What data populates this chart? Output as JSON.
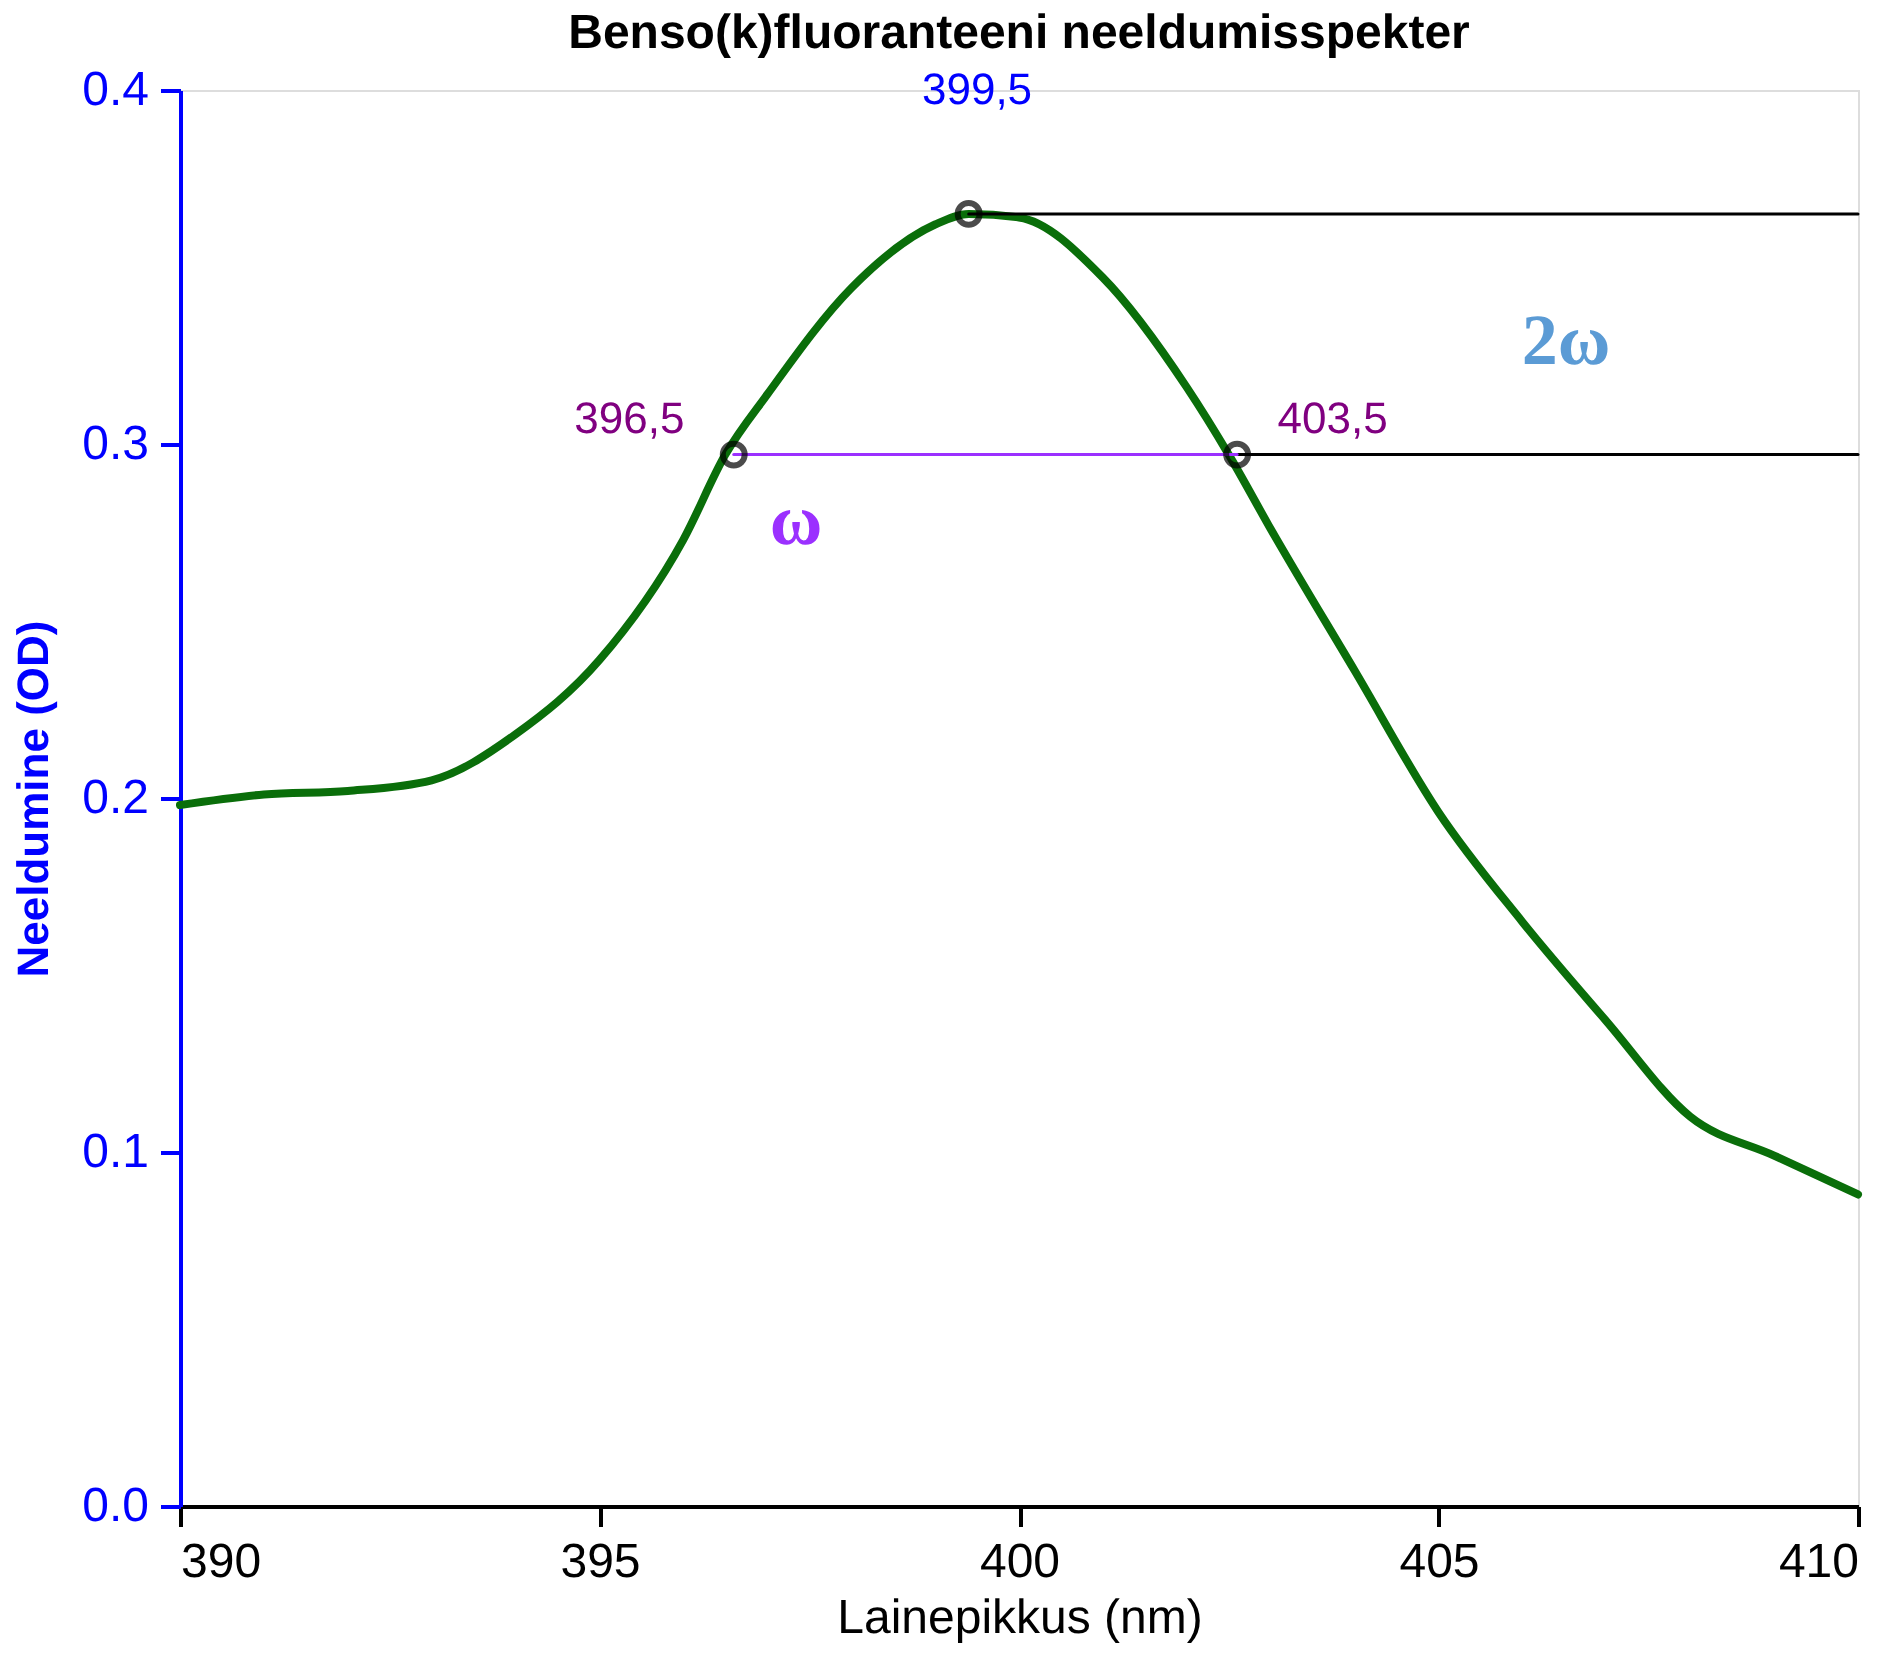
{
  "chart_data": {
    "type": "line",
    "title": "Benso(k)fluoranteeni neeldumisspekter",
    "xlabel": "Lainepikkus (nm)",
    "ylabel": "Neeldumine (OD)",
    "xlim": [
      390,
      410
    ],
    "xticks": [
      390,
      395,
      400,
      405,
      410
    ],
    "ylim": [
      0,
      0.4
    ],
    "yticks": [
      {
        "value": 0,
        "label": "0.0"
      },
      0.1,
      0.2,
      0.3,
      0.4
    ],
    "grid": false,
    "legend": false,
    "series": [
      {
        "color": "#0a6e0a",
        "x": [
          390,
          391,
          392,
          393,
          394,
          395,
          396,
          396.5,
          397,
          398,
          399,
          399.4,
          400,
          401,
          402,
          402.5,
          403,
          404,
          405,
          406,
          407,
          408,
          409,
          410
        ],
        "values": [
          0.198,
          0.201,
          0.202,
          0.205,
          0.218,
          0.239,
          0.273,
          0.297,
          0.314,
          0.344,
          0.362,
          0.365,
          0.364,
          0.347,
          0.316,
          0.297,
          0.276,
          0.236,
          0.196,
          0.165,
          0.137,
          0.11,
          0.099,
          0.088
        ]
      },
      {
        "type": "line",
        "color": "#000000",
        "x": [
          399.4,
          410
        ],
        "values": [
          0.365,
          0.365
        ]
      },
      {
        "type": "line",
        "color": "#000000",
        "x": [
          402.6,
          410
        ],
        "values": [
          0.297,
          0.297
        ]
      },
      {
        "type": "line",
        "color": "#9b30ff",
        "x": [
          396.6,
          402.6
        ],
        "values": [
          0.297,
          0.297
        ]
      },
      {
        "type": "scatter",
        "marker": "circle",
        "color": "#000000",
        "x": [
          396.6,
          399.4,
          402.6
        ],
        "values": [
          0.297,
          0.365,
          0.297
        ]
      }
    ],
    "annotations": [
      {
        "text": "399,5",
        "x": 399.5,
        "y": 0.365
      },
      {
        "text": "396,5",
        "x": 396.5,
        "y": 0.297
      },
      {
        "text": "403,5",
        "x": 403.5,
        "y": 0.297
      },
      "ω",
      "2ω"
    ]
  }
}
